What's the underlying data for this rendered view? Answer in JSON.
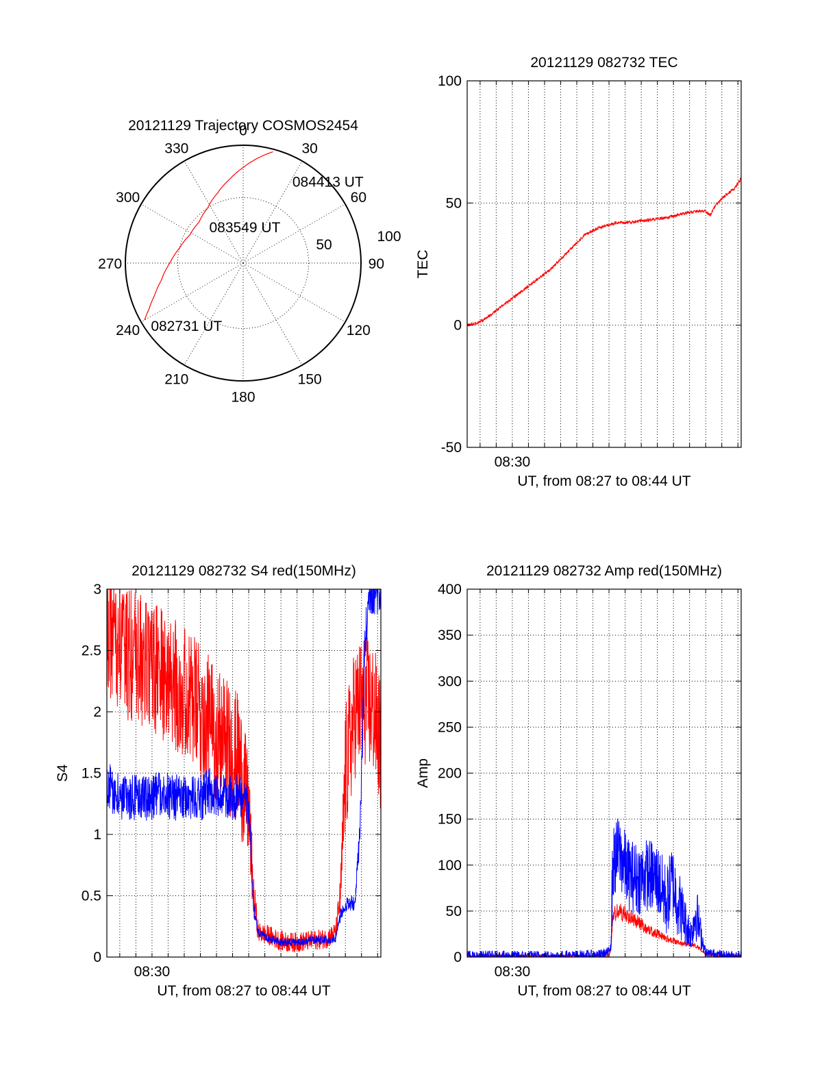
{
  "chart_data": [
    {
      "id": "trajectory",
      "type": "scatter",
      "title": "20121129 Trajectory COSMOS2454",
      "coordinate_system": "polar (azimuth clockwise from north, radius = 90 - elevation)",
      "azimuth_labels": [
        "0",
        "30",
        "60",
        "90",
        "120",
        "150",
        "180",
        "210",
        "240",
        "270",
        "300",
        "330"
      ],
      "radius_labels": [
        "50",
        "100"
      ],
      "grid": true,
      "track": {
        "color": "#ff0000",
        "points": [
          {
            "azimuth": 240,
            "radius": 87
          },
          {
            "azimuth": 244,
            "radius": 80
          },
          {
            "azimuth": 250,
            "radius": 72
          },
          {
            "azimuth": 258,
            "radius": 64
          },
          {
            "azimuth": 270,
            "radius": 56
          },
          {
            "azimuth": 283,
            "radius": 50
          },
          {
            "azimuth": 298,
            "radius": 46
          },
          {
            "azimuth": 313,
            "radius": 46
          },
          {
            "azimuth": 327,
            "radius": 50
          },
          {
            "azimuth": 340,
            "radius": 57
          },
          {
            "azimuth": 351,
            "radius": 65
          },
          {
            "azimuth": 360,
            "radius": 73
          },
          {
            "azimuth": 368,
            "radius": 81
          },
          {
            "azimuth": 375,
            "radius": 88
          }
        ]
      },
      "annotations": [
        {
          "text": "082731 UT",
          "azimuth": 236,
          "radius": 85
        },
        {
          "text": "083549 UT",
          "azimuth": 317,
          "radius": 38
        },
        {
          "text": "084413 UT",
          "azimuth": 31,
          "radius": 73
        }
      ]
    },
    {
      "id": "tec",
      "type": "line",
      "title": "20121129 082732 TEC",
      "xlabel": "UT, from 08:27 to 08:44 UT",
      "ylabel": "TEC",
      "xlim": [
        8.4533,
        8.7367
      ],
      "ylim": [
        -50,
        100
      ],
      "yticks": [
        -50,
        0,
        50,
        100
      ],
      "xticks": [
        {
          "value": 8.5,
          "label": "08:30"
        }
      ],
      "grid": true,
      "series": [
        {
          "color": "#ff0000",
          "noise": 0.6,
          "x": [
            8.4533,
            8.46,
            8.47,
            8.48,
            8.49,
            8.5,
            8.51,
            8.52,
            8.53,
            8.54,
            8.55,
            8.56,
            8.57,
            8.575,
            8.58,
            8.59,
            8.6,
            8.61,
            8.62,
            8.63,
            8.64,
            8.65,
            8.66,
            8.67,
            8.68,
            8.69,
            8.7,
            8.705,
            8.71,
            8.72,
            8.73,
            8.7367
          ],
          "y": [
            0,
            0.5,
            2,
            5,
            8,
            11,
            14,
            17,
            20,
            23,
            27,
            31,
            35,
            37,
            38,
            40,
            41,
            42,
            42,
            42.5,
            43,
            43.5,
            44,
            45,
            46,
            46.5,
            46.5,
            45,
            49,
            53,
            56,
            60
          ]
        }
      ]
    },
    {
      "id": "s4",
      "type": "line",
      "title": "20121129 082732 S4 red(150MHz)",
      "xlabel": "UT, from 08:27 to 08:44 UT",
      "ylabel": "S4",
      "xlim": [
        8.4533,
        8.7367
      ],
      "ylim": [
        0,
        3
      ],
      "yticks": [
        "0",
        "0.5",
        "1",
        "1.5",
        "2",
        "2.5",
        "3"
      ],
      "xticks": [
        {
          "value": 8.5,
          "label": "08:30"
        }
      ],
      "grid": true,
      "series": [
        {
          "color": "#ff0000",
          "noise": 0.55,
          "x": [
            8.4533,
            8.46,
            8.47,
            8.48,
            8.49,
            8.5,
            8.51,
            8.52,
            8.53,
            8.54,
            8.55,
            8.56,
            8.57,
            8.58,
            8.59,
            8.6,
            8.605,
            8.61,
            8.62,
            8.63,
            8.64,
            8.65,
            8.66,
            8.67,
            8.68,
            8.69,
            8.695,
            8.7,
            8.71,
            8.72,
            8.73,
            8.7367
          ],
          "y": [
            2.7,
            2.6,
            2.5,
            2.45,
            2.4,
            2.35,
            2.3,
            2.25,
            2.2,
            2.1,
            2.0,
            1.9,
            1.8,
            1.7,
            1.6,
            1.2,
            0.5,
            0.2,
            0.18,
            0.14,
            0.12,
            0.12,
            0.13,
            0.14,
            0.15,
            0.2,
            0.5,
            1.5,
            2.0,
            2.1,
            2.0,
            1.7
          ]
        },
        {
          "color": "#0000ff",
          "noise": 0.22,
          "x": [
            8.4533,
            8.46,
            8.47,
            8.48,
            8.49,
            8.5,
            8.51,
            8.52,
            8.53,
            8.54,
            8.55,
            8.56,
            8.57,
            8.58,
            8.59,
            8.6,
            8.605,
            8.61,
            8.62,
            8.63,
            8.64,
            8.65,
            8.66,
            8.67,
            8.68,
            8.69,
            8.695,
            8.7,
            8.71,
            8.715,
            8.72,
            8.725,
            8.73,
            8.7367
          ],
          "y": [
            1.4,
            1.35,
            1.3,
            1.3,
            1.3,
            1.3,
            1.35,
            1.3,
            1.3,
            1.3,
            1.3,
            1.35,
            1.3,
            1.3,
            1.3,
            1.25,
            0.4,
            0.2,
            0.15,
            0.13,
            0.12,
            0.12,
            0.13,
            0.14,
            0.14,
            0.15,
            0.35,
            0.42,
            0.45,
            1.0,
            2.5,
            3.0,
            3.0,
            3.0
          ]
        }
      ]
    },
    {
      "id": "amp",
      "type": "line",
      "title": "20121129 082732 Amp red(150MHz)",
      "xlabel": "UT, from 08:27 to 08:44 UT",
      "ylabel": "Amp",
      "xlim": [
        8.4533,
        8.7367
      ],
      "ylim": [
        0,
        400
      ],
      "yticks": [
        0,
        50,
        100,
        150,
        200,
        250,
        300,
        350,
        400
      ],
      "xticks": [
        {
          "value": 8.5,
          "label": "08:30"
        }
      ],
      "grid": true,
      "series": [
        {
          "color": "#ff0000",
          "noise": 12,
          "x": [
            8.4533,
            8.5,
            8.55,
            8.6,
            8.602,
            8.604,
            8.61,
            8.62,
            8.63,
            8.64,
            8.65,
            8.66,
            8.67,
            8.68,
            8.69,
            8.7,
            8.71,
            8.7367
          ],
          "y": [
            1,
            1,
            1,
            1,
            8,
            45,
            50,
            45,
            38,
            30,
            25,
            20,
            16,
            15,
            12,
            4,
            2,
            1
          ]
        },
        {
          "color": "#0000ff",
          "noise": 40,
          "x": [
            8.4533,
            8.5,
            8.55,
            8.59,
            8.6,
            8.602,
            8.604,
            8.61,
            8.62,
            8.63,
            8.64,
            8.65,
            8.66,
            8.665,
            8.67,
            8.68,
            8.685,
            8.69,
            8.695,
            8.7,
            8.71,
            8.72,
            8.7367
          ],
          "y": [
            1,
            1,
            1,
            2,
            5,
            20,
            100,
            115,
            90,
            85,
            90,
            85,
            60,
            85,
            65,
            35,
            25,
            50,
            25,
            4,
            3,
            1,
            1
          ]
        }
      ]
    }
  ]
}
